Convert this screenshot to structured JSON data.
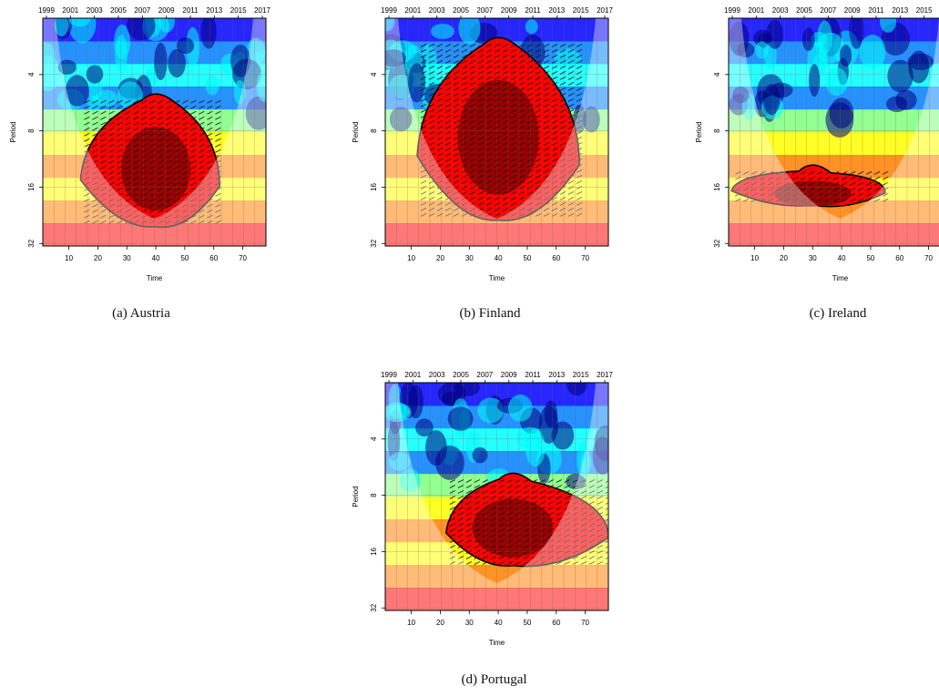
{
  "figure": {
    "captions": [
      "(a) Austria",
      "(b) Finland",
      "(c) Ireland",
      "(d) Portugal"
    ]
  },
  "chart_data": [
    {
      "type": "heatmap",
      "country": "Austria",
      "caption": "(a) Austria",
      "xlabel": "Time",
      "ylabel": "Period",
      "xlim": [
        1,
        78
      ],
      "ylim_log2_period": [
        2,
        33
      ],
      "x_ticks": [
        10,
        20,
        30,
        40,
        50,
        60,
        70
      ],
      "y_ticks": [
        4,
        8,
        16,
        32
      ],
      "top_axis_years": [
        "1999",
        "2001",
        "2003",
        "2005",
        "2007",
        "2009",
        "2011",
        "2013",
        "2015",
        "2017"
      ],
      "significant_region": {
        "time": [
          14,
          62
        ],
        "period": [
          5,
          26
        ],
        "peak_time": 40
      },
      "cone_of_influence": true,
      "colormap": [
        "#00007f",
        "#0000ff",
        "#007fff",
        "#00ffff",
        "#7fff7f",
        "#ffff00",
        "#ff7f00",
        "#ff0000",
        "#7f0000"
      ]
    },
    {
      "type": "heatmap",
      "country": "Finland",
      "caption": "(b) Finland",
      "xlabel": "Time",
      "ylabel": "Period",
      "xlim": [
        1,
        78
      ],
      "ylim_log2_period": [
        2,
        33
      ],
      "x_ticks": [
        10,
        20,
        30,
        40,
        50,
        60,
        70
      ],
      "y_ticks": [
        4,
        8,
        16,
        32
      ],
      "top_axis_years": [
        "1999",
        "2001",
        "2003",
        "2005",
        "2007",
        "2009",
        "2011",
        "2013",
        "2015",
        "2017"
      ],
      "significant_region": {
        "time": [
          12,
          68
        ],
        "period": [
          2.5,
          24
        ],
        "peak_time": 40
      },
      "cone_of_influence": true,
      "colormap": [
        "#00007f",
        "#0000ff",
        "#007fff",
        "#00ffff",
        "#7fff7f",
        "#ffff00",
        "#ff7f00",
        "#ff0000",
        "#7f0000"
      ]
    },
    {
      "type": "heatmap",
      "country": "Ireland",
      "caption": "(c) Ireland",
      "xlabel": "Time",
      "ylabel": "Period",
      "xlim": [
        1,
        78
      ],
      "ylim_log2_period": [
        2,
        33
      ],
      "x_ticks": [
        10,
        20,
        30,
        40,
        50,
        60,
        70
      ],
      "y_ticks": [
        4,
        8,
        16,
        32
      ],
      "top_axis_years": [
        "1999",
        "2001",
        "2003",
        "2005",
        "2007",
        "2009",
        "2011",
        "2013",
        "2015",
        "2017"
      ],
      "significant_region": {
        "time": [
          2,
          55
        ],
        "period": [
          12,
          20
        ],
        "peak_time": 30
      },
      "cone_of_influence": true,
      "colormap": [
        "#00007f",
        "#0000ff",
        "#007fff",
        "#00ffff",
        "#7fff7f",
        "#ffff00",
        "#ff7f00",
        "#ff0000",
        "#7f0000"
      ]
    },
    {
      "type": "heatmap",
      "country": "Portugal",
      "caption": "(d) Portugal",
      "xlabel": "Time",
      "ylabel": "Period",
      "xlim": [
        1,
        78
      ],
      "ylim_log2_period": [
        2,
        33
      ],
      "x_ticks": [
        10,
        20,
        30,
        40,
        50,
        60,
        70
      ],
      "y_ticks": [
        4,
        8,
        16,
        32
      ],
      "top_axis_years": [
        "1999",
        "2001",
        "2003",
        "2005",
        "2007",
        "2009",
        "2011",
        "2013",
        "2015",
        "2017"
      ],
      "significant_region": {
        "time": [
          22,
          78
        ],
        "period": [
          6,
          19
        ],
        "peak_time": 45
      },
      "cone_of_influence": true,
      "colormap": [
        "#00007f",
        "#0000ff",
        "#007fff",
        "#00ffff",
        "#7fff7f",
        "#ffff00",
        "#ff7f00",
        "#ff0000",
        "#7f0000"
      ]
    }
  ]
}
